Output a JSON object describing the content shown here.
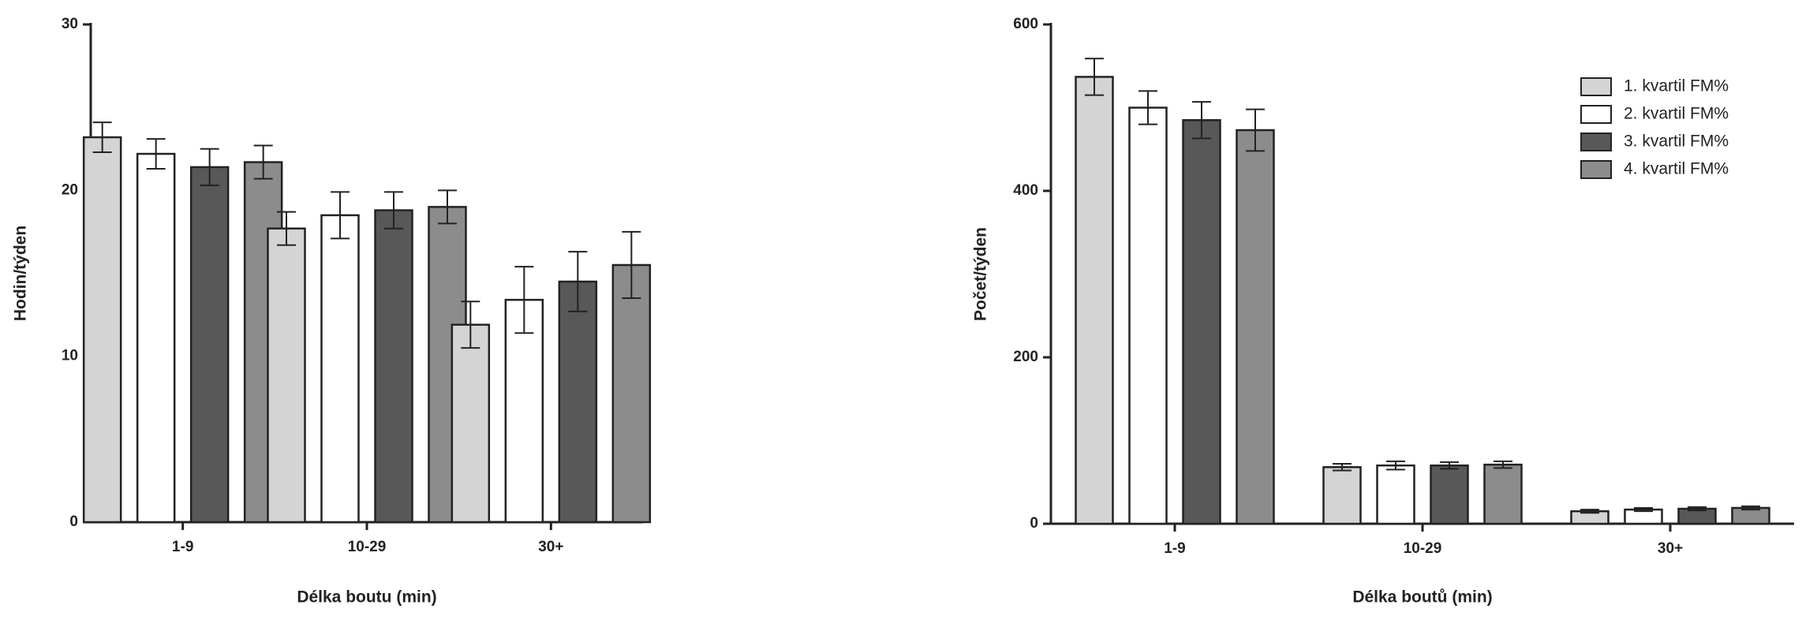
{
  "chart_data": [
    {
      "type": "bar",
      "ylabel": "Hodin/týden",
      "xlabel": "Délka boutu (min)",
      "categories": [
        "1-9",
        "10-29",
        "30+"
      ],
      "ylim": [
        0,
        30
      ],
      "yticks": [
        0,
        10,
        20,
        30
      ],
      "series": [
        {
          "color": "#d4d4d4",
          "values": [
            23.2,
            17.7,
            11.9
          ],
          "errors": [
            0.9,
            1.0,
            1.4
          ]
        },
        {
          "color": "#ffffff",
          "values": [
            22.2,
            18.5,
            13.4
          ],
          "errors": [
            0.9,
            1.4,
            2.0
          ]
        },
        {
          "color": "#585858",
          "values": [
            21.4,
            18.8,
            14.5
          ],
          "errors": [
            1.1,
            1.1,
            1.8
          ]
        },
        {
          "color": "#8c8c8c",
          "values": [
            21.7,
            19.0,
            15.5
          ],
          "errors": [
            1.0,
            1.0,
            2.0
          ]
        }
      ]
    },
    {
      "type": "bar",
      "ylabel": "Počet/týden",
      "xlabel": "Délka boutů (min)",
      "categories": [
        "1-9",
        "10-29",
        "30+"
      ],
      "ylim": [
        0,
        600
      ],
      "yticks": [
        0,
        200,
        400,
        600
      ],
      "legend": "upper right",
      "series": [
        {
          "name": "1. kvartil FM%",
          "color": "#d4d4d4",
          "values": [
            537,
            68,
            15
          ],
          "errors": [
            22,
            4,
            2
          ]
        },
        {
          "name": "2. kvartil FM%",
          "color": "#ffffff",
          "values": [
            500,
            70,
            17
          ],
          "errors": [
            20,
            5,
            2
          ]
        },
        {
          "name": "3. kvartil FM%",
          "color": "#585858",
          "values": [
            485,
            70,
            18
          ],
          "errors": [
            22,
            4,
            2
          ]
        },
        {
          "name": "4. kvartil FM%",
          "color": "#8c8c8c",
          "values": [
            473,
            71,
            19
          ],
          "errors": [
            25,
            4,
            2
          ]
        }
      ]
    }
  ]
}
